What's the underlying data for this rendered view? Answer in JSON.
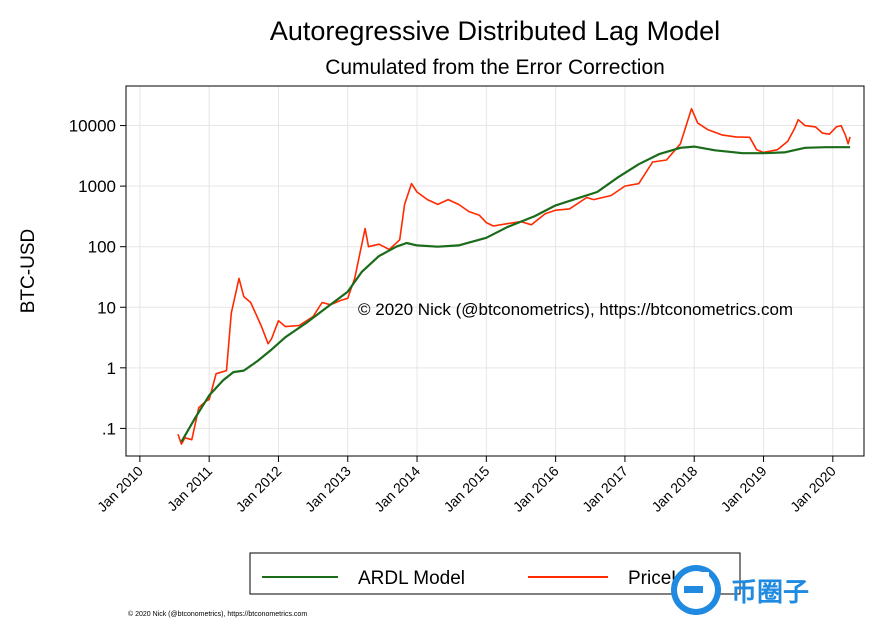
{
  "chart_data": {
    "type": "line",
    "title": "Autoregressive Distributed Lag Model",
    "subtitle": "Cumulated from the Error Correction",
    "ylabel": "BTC-USD",
    "xlabel": "",
    "yscale": "log",
    "ylim": [
      0.035,
      45000
    ],
    "xlim": [
      2009.8,
      2020.45
    ],
    "yticks": [
      {
        "value": 0.1,
        "label": ".1"
      },
      {
        "value": 1,
        "label": "1"
      },
      {
        "value": 10,
        "label": "10"
      },
      {
        "value": 100,
        "label": "100"
      },
      {
        "value": 1000,
        "label": "1000"
      },
      {
        "value": 10000,
        "label": "10000"
      }
    ],
    "xticks": [
      {
        "value": 2010,
        "label": "Jan 2010"
      },
      {
        "value": 2011,
        "label": "Jan 2011"
      },
      {
        "value": 2012,
        "label": "Jan 2012"
      },
      {
        "value": 2013,
        "label": "Jan 2013"
      },
      {
        "value": 2014,
        "label": "Jan 2014"
      },
      {
        "value": 2015,
        "label": "Jan 2015"
      },
      {
        "value": 2016,
        "label": "Jan 2016"
      },
      {
        "value": 2017,
        "label": "Jan 2017"
      },
      {
        "value": 2018,
        "label": "Jan 2018"
      },
      {
        "value": 2019,
        "label": "Jan 2019"
      },
      {
        "value": 2020,
        "label": "Jan 2020"
      }
    ],
    "grid": true,
    "legend_position": "bottom",
    "annotation": "© 2020 Nick (@btconometrics), https://btconometrics.com",
    "series": [
      {
        "name": "ARDL Model",
        "color": "#1a6b1a",
        "points": [
          [
            2010.6,
            0.06
          ],
          [
            2010.8,
            0.15
          ],
          [
            2011.0,
            0.35
          ],
          [
            2011.2,
            0.62
          ],
          [
            2011.35,
            0.85
          ],
          [
            2011.5,
            0.9
          ],
          [
            2011.7,
            1.3
          ],
          [
            2011.9,
            2.0
          ],
          [
            2012.1,
            3.2
          ],
          [
            2012.4,
            5.5
          ],
          [
            2012.7,
            10
          ],
          [
            2013.0,
            18
          ],
          [
            2013.2,
            38
          ],
          [
            2013.45,
            70
          ],
          [
            2013.7,
            100
          ],
          [
            2013.85,
            115
          ],
          [
            2014.0,
            105
          ],
          [
            2014.3,
            100
          ],
          [
            2014.6,
            105
          ],
          [
            2015.0,
            140
          ],
          [
            2015.3,
            210
          ],
          [
            2015.7,
            320
          ],
          [
            2016.0,
            480
          ],
          [
            2016.3,
            620
          ],
          [
            2016.6,
            800
          ],
          [
            2016.9,
            1400
          ],
          [
            2017.2,
            2300
          ],
          [
            2017.5,
            3400
          ],
          [
            2017.8,
            4300
          ],
          [
            2018.0,
            4500
          ],
          [
            2018.3,
            3900
          ],
          [
            2018.7,
            3500
          ],
          [
            2019.0,
            3500
          ],
          [
            2019.3,
            3600
          ],
          [
            2019.6,
            4300
          ],
          [
            2019.9,
            4400
          ],
          [
            2020.25,
            4400
          ]
        ]
      },
      {
        "name": "PriceUSD",
        "color": "#ff2a00",
        "points": [
          [
            2010.55,
            0.08
          ],
          [
            2010.6,
            0.055
          ],
          [
            2010.65,
            0.07
          ],
          [
            2010.75,
            0.065
          ],
          [
            2010.85,
            0.22
          ],
          [
            2010.95,
            0.28
          ],
          [
            2011.0,
            0.3
          ],
          [
            2011.1,
            0.8
          ],
          [
            2011.25,
            0.9
          ],
          [
            2011.32,
            8
          ],
          [
            2011.43,
            30
          ],
          [
            2011.5,
            15
          ],
          [
            2011.6,
            12
          ],
          [
            2011.75,
            5
          ],
          [
            2011.85,
            2.5
          ],
          [
            2011.9,
            3
          ],
          [
            2012.0,
            6
          ],
          [
            2012.1,
            4.8
          ],
          [
            2012.3,
            5
          ],
          [
            2012.5,
            7
          ],
          [
            2012.63,
            12
          ],
          [
            2012.75,
            11
          ],
          [
            2012.9,
            13
          ],
          [
            2013.0,
            14
          ],
          [
            2013.1,
            30
          ],
          [
            2013.25,
            200
          ],
          [
            2013.3,
            100
          ],
          [
            2013.45,
            110
          ],
          [
            2013.6,
            90
          ],
          [
            2013.75,
            130
          ],
          [
            2013.82,
            500
          ],
          [
            2013.92,
            1100
          ],
          [
            2014.0,
            800
          ],
          [
            2014.15,
            600
          ],
          [
            2014.3,
            500
          ],
          [
            2014.45,
            600
          ],
          [
            2014.6,
            500
          ],
          [
            2014.75,
            380
          ],
          [
            2014.9,
            330
          ],
          [
            2015.0,
            250
          ],
          [
            2015.1,
            220
          ],
          [
            2015.3,
            240
          ],
          [
            2015.5,
            260
          ],
          [
            2015.65,
            230
          ],
          [
            2015.85,
            350
          ],
          [
            2016.0,
            400
          ],
          [
            2016.2,
            420
          ],
          [
            2016.45,
            650
          ],
          [
            2016.55,
            600
          ],
          [
            2016.8,
            700
          ],
          [
            2017.0,
            1000
          ],
          [
            2017.2,
            1100
          ],
          [
            2017.4,
            2500
          ],
          [
            2017.6,
            2700
          ],
          [
            2017.8,
            5000
          ],
          [
            2017.96,
            19000
          ],
          [
            2018.05,
            11000
          ],
          [
            2018.2,
            8500
          ],
          [
            2018.4,
            7000
          ],
          [
            2018.6,
            6500
          ],
          [
            2018.8,
            6400
          ],
          [
            2018.9,
            4000
          ],
          [
            2019.0,
            3600
          ],
          [
            2019.2,
            4000
          ],
          [
            2019.35,
            5500
          ],
          [
            2019.45,
            9000
          ],
          [
            2019.5,
            12500
          ],
          [
            2019.6,
            10000
          ],
          [
            2019.75,
            9500
          ],
          [
            2019.85,
            7500
          ],
          [
            2019.95,
            7200
          ],
          [
            2020.05,
            9500
          ],
          [
            2020.12,
            10000
          ],
          [
            2020.18,
            7000
          ],
          [
            2020.22,
            5000
          ],
          [
            2020.25,
            6500
          ]
        ]
      }
    ]
  },
  "footer": {
    "credit": "© 2020 Nick (@btconometrics), https://btconometrics.com"
  },
  "watermark": {
    "text": "币圈子"
  }
}
